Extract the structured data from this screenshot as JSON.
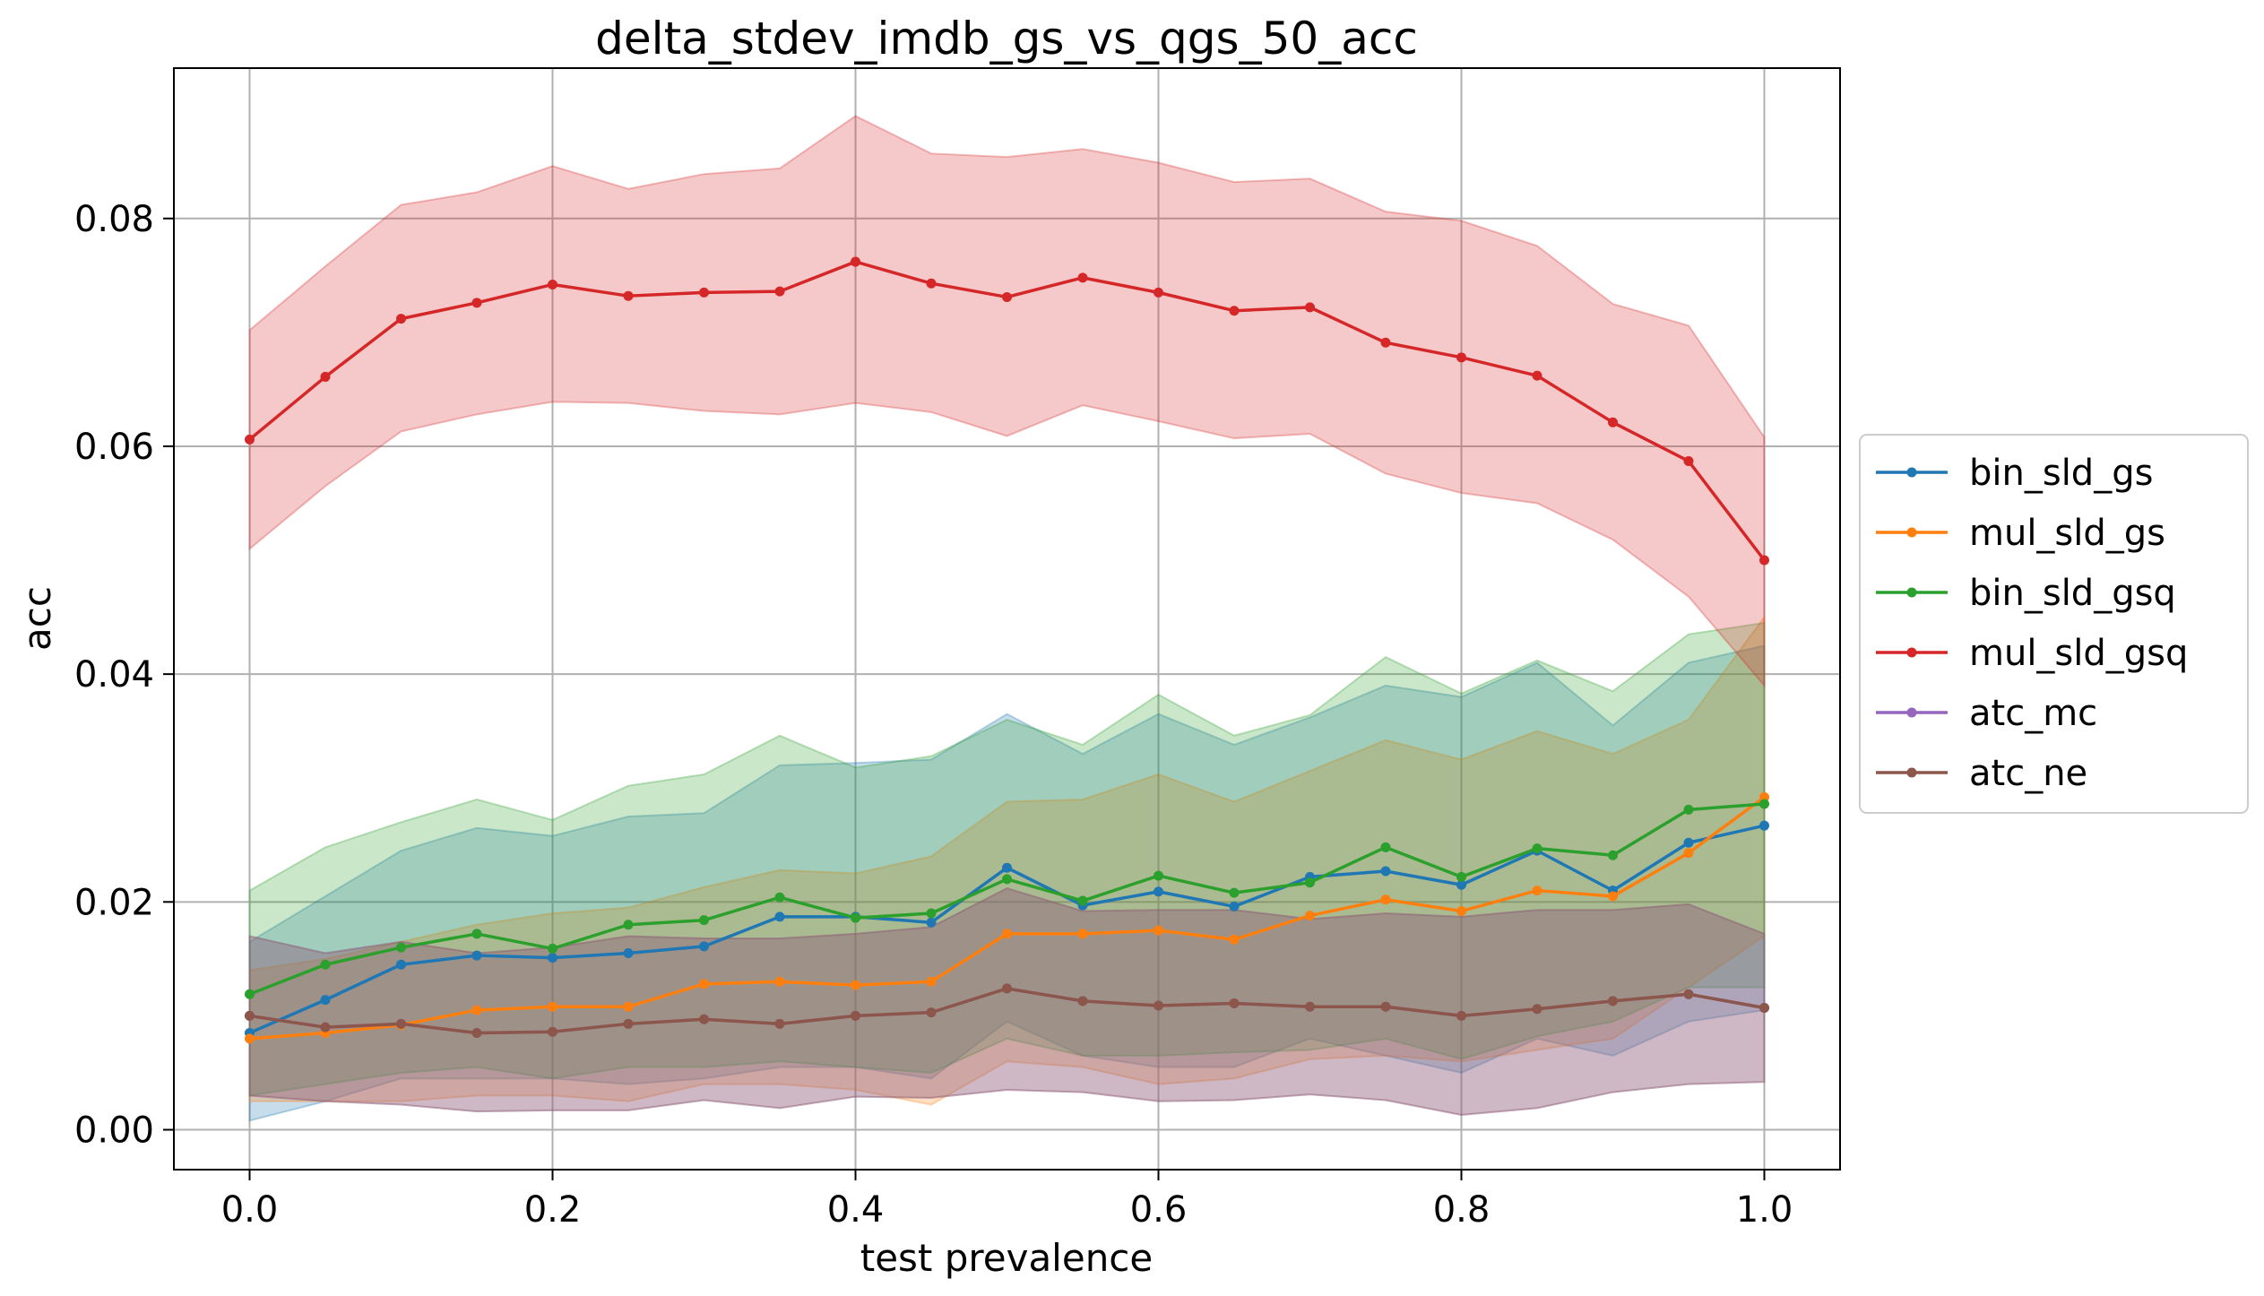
{
  "chart_data": {
    "type": "line",
    "title": "delta_stdev_imdb_gs_vs_qgs_50_acc",
    "xlabel": "test prevalence",
    "ylabel": "acc",
    "xlim": [
      -0.05,
      1.05
    ],
    "ylim": [
      -0.0035,
      0.0932
    ],
    "grid": true,
    "legend_position": "right",
    "x_ticks": [
      0.0,
      0.2,
      0.4,
      0.6,
      0.8,
      1.0
    ],
    "x_tick_labels": [
      "0.0",
      "0.2",
      "0.4",
      "0.6",
      "0.8",
      "1.0"
    ],
    "y_ticks": [
      0.0,
      0.02,
      0.04,
      0.06,
      0.08
    ],
    "y_tick_labels": [
      "0.00",
      "0.02",
      "0.04",
      "0.06",
      "0.08"
    ],
    "x": [
      0.0,
      0.05,
      0.1,
      0.15,
      0.2,
      0.25,
      0.3,
      0.35,
      0.4,
      0.45,
      0.5,
      0.55,
      0.6,
      0.65,
      0.7,
      0.75,
      0.8,
      0.85,
      0.9,
      0.95,
      1.0
    ],
    "series": [
      {
        "name": "bin_sld_gs",
        "color": "#1f77b4",
        "values": [
          0.0085,
          0.0114,
          0.0145,
          0.0153,
          0.0151,
          0.0155,
          0.0161,
          0.0187,
          0.0187,
          0.0182,
          0.023,
          0.0197,
          0.0209,
          0.0196,
          0.0222,
          0.0227,
          0.0215,
          0.0245,
          0.021,
          0.0252,
          0.0267
        ],
        "upper": [
          0.0165,
          0.0205,
          0.0245,
          0.0265,
          0.0258,
          0.0275,
          0.0278,
          0.032,
          0.0322,
          0.0325,
          0.0365,
          0.033,
          0.0365,
          0.0338,
          0.0362,
          0.039,
          0.038,
          0.041,
          0.0355,
          0.041,
          0.0425
        ],
        "lower": [
          0.0008,
          0.0025,
          0.0045,
          0.0045,
          0.0045,
          0.004,
          0.0045,
          0.0055,
          0.0055,
          0.0045,
          0.0095,
          0.0065,
          0.0055,
          0.0055,
          0.008,
          0.0065,
          0.005,
          0.008,
          0.0065,
          0.0095,
          0.0105
        ]
      },
      {
        "name": "mul_sld_gs",
        "color": "#ff7f0e",
        "values": [
          0.008,
          0.0085,
          0.0092,
          0.0105,
          0.0108,
          0.0108,
          0.0128,
          0.013,
          0.0127,
          0.013,
          0.0172,
          0.0172,
          0.0175,
          0.0167,
          0.0188,
          0.0202,
          0.0192,
          0.021,
          0.0205,
          0.0243,
          0.0292
        ],
        "upper": [
          0.014,
          0.015,
          0.0165,
          0.018,
          0.019,
          0.0195,
          0.0213,
          0.0228,
          0.0225,
          0.024,
          0.0288,
          0.029,
          0.0312,
          0.0288,
          0.0315,
          0.0342,
          0.0325,
          0.035,
          0.033,
          0.036,
          0.045
        ],
        "lower": [
          0.0025,
          0.0025,
          0.0025,
          0.003,
          0.003,
          0.0025,
          0.004,
          0.004,
          0.0035,
          0.0022,
          0.006,
          0.0055,
          0.004,
          0.0045,
          0.0062,
          0.0065,
          0.006,
          0.007,
          0.008,
          0.0125,
          0.017
        ]
      },
      {
        "name": "bin_sld_gsq",
        "color": "#2ca02c",
        "values": [
          0.0119,
          0.0145,
          0.016,
          0.0172,
          0.0159,
          0.018,
          0.0184,
          0.0204,
          0.0186,
          0.019,
          0.022,
          0.0201,
          0.0223,
          0.0208,
          0.0217,
          0.0248,
          0.0222,
          0.0247,
          0.0241,
          0.0281,
          0.0286
        ],
        "upper": [
          0.021,
          0.0248,
          0.027,
          0.029,
          0.0272,
          0.0302,
          0.0312,
          0.0346,
          0.0318,
          0.0328,
          0.036,
          0.0338,
          0.0382,
          0.0346,
          0.0364,
          0.0415,
          0.0383,
          0.0412,
          0.0385,
          0.0435,
          0.0445
        ],
        "lower": [
          0.003,
          0.004,
          0.005,
          0.0055,
          0.0045,
          0.0055,
          0.0055,
          0.006,
          0.0055,
          0.005,
          0.008,
          0.0065,
          0.0065,
          0.0068,
          0.007,
          0.008,
          0.0062,
          0.0082,
          0.0095,
          0.0125,
          0.0125
        ]
      },
      {
        "name": "mul_sld_gsq",
        "color": "#d62728",
        "values": [
          0.0606,
          0.0661,
          0.0712,
          0.0726,
          0.0742,
          0.0732,
          0.0735,
          0.0736,
          0.0762,
          0.0743,
          0.0731,
          0.0748,
          0.0735,
          0.0719,
          0.0722,
          0.0691,
          0.0678,
          0.0662,
          0.0621,
          0.0587,
          0.05
        ],
        "upper": [
          0.0702,
          0.0758,
          0.0812,
          0.0823,
          0.0846,
          0.0826,
          0.0839,
          0.0844,
          0.089,
          0.0857,
          0.0854,
          0.0861,
          0.0849,
          0.0832,
          0.0835,
          0.0806,
          0.0798,
          0.0776,
          0.0725,
          0.0706,
          0.0608
        ],
        "lower": [
          0.051,
          0.0565,
          0.0613,
          0.0628,
          0.0639,
          0.0638,
          0.0631,
          0.0628,
          0.0638,
          0.063,
          0.0609,
          0.0636,
          0.0622,
          0.0607,
          0.0611,
          0.0576,
          0.0559,
          0.055,
          0.0518,
          0.0468,
          0.039
        ]
      },
      {
        "name": "atc_mc",
        "color": "#9467bd",
        "values": [
          0.01,
          0.009,
          0.0093,
          0.0085,
          0.0086,
          0.0093,
          0.0097,
          0.0093,
          0.01,
          0.0103,
          0.0124,
          0.0113,
          0.0109,
          0.0111,
          0.0108,
          0.0108,
          0.01,
          0.0106,
          0.0113,
          0.0119,
          0.0107
        ],
        "upper": [
          0.017,
          0.0155,
          0.0165,
          0.0155,
          0.016,
          0.017,
          0.0168,
          0.0168,
          0.0172,
          0.0178,
          0.0212,
          0.0192,
          0.0193,
          0.0193,
          0.0185,
          0.019,
          0.0187,
          0.0193,
          0.0193,
          0.0198,
          0.0172
        ],
        "lower": [
          0.003,
          0.0025,
          0.0022,
          0.0016,
          0.0017,
          0.0017,
          0.0026,
          0.0019,
          0.0029,
          0.0028,
          0.0035,
          0.0033,
          0.0025,
          0.0026,
          0.0031,
          0.0026,
          0.0013,
          0.0019,
          0.0033,
          0.004,
          0.0042
        ]
      },
      {
        "name": "atc_ne",
        "color": "#8c564b",
        "values": [
          0.01,
          0.009,
          0.0093,
          0.0085,
          0.0086,
          0.0093,
          0.0097,
          0.0093,
          0.01,
          0.0103,
          0.0124,
          0.0113,
          0.0109,
          0.0111,
          0.0108,
          0.0108,
          0.01,
          0.0106,
          0.0113,
          0.0119,
          0.0107
        ],
        "upper": [
          0.017,
          0.0155,
          0.0165,
          0.0155,
          0.016,
          0.017,
          0.0168,
          0.0168,
          0.0172,
          0.0178,
          0.0212,
          0.0192,
          0.0193,
          0.0193,
          0.0185,
          0.019,
          0.0187,
          0.0193,
          0.0193,
          0.0198,
          0.0172
        ],
        "lower": [
          0.003,
          0.0025,
          0.0022,
          0.0016,
          0.0017,
          0.0017,
          0.0026,
          0.0019,
          0.0029,
          0.0028,
          0.0035,
          0.0033,
          0.0025,
          0.0026,
          0.0031,
          0.0026,
          0.0013,
          0.0019,
          0.0033,
          0.004,
          0.0042
        ]
      }
    ]
  }
}
